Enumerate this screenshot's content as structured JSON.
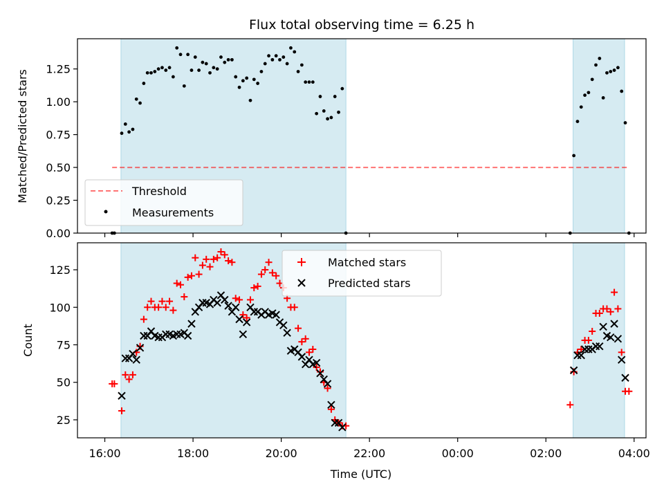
{
  "colors": {
    "shade": "#add8e6",
    "threshold": "#ff0000",
    "measurement": "#000000",
    "matched": "#ff0000",
    "predicted": "#000000"
  },
  "chart_data": [
    {
      "type": "scatter",
      "title": "Flux total observing time = 6.25 h",
      "ylabel": "Matched/Predicted stars",
      "xlabel": "",
      "xlim": [
        "16:00",
        "04:00"
      ],
      "ylim": [
        0,
        1.48
      ],
      "yticks": [
        "0.00",
        "0.25",
        "0.50",
        "0.75",
        "1.00",
        "1.25"
      ],
      "legend_position": "lower-left",
      "shaded_intervals": [
        [
          "16:22",
          "21:28"
        ],
        [
          "02:37",
          "03:47"
        ]
      ],
      "threshold": {
        "name": "Threshold",
        "value": 0.5,
        "x_range": [
          "16:10",
          "03:53"
        ]
      },
      "measurements": {
        "name": "Measurements",
        "x": [
          "16:10",
          "16:13",
          "16:23",
          "16:28",
          "16:33",
          "16:38",
          "16:43",
          "16:48",
          "16:53",
          "16:58",
          "17:03",
          "17:08",
          "17:13",
          "17:18",
          "17:23",
          "17:28",
          "17:33",
          "17:38",
          "17:43",
          "17:48",
          "17:53",
          "17:58",
          "18:03",
          "18:08",
          "18:13",
          "18:18",
          "18:23",
          "18:28",
          "18:33",
          "18:38",
          "18:43",
          "18:48",
          "18:53",
          "18:58",
          "19:03",
          "19:08",
          "19:13",
          "19:18",
          "19:23",
          "19:28",
          "19:33",
          "19:38",
          "19:43",
          "19:48",
          "19:53",
          "19:58",
          "20:03",
          "20:08",
          "20:13",
          "20:18",
          "20:23",
          "20:28",
          "20:33",
          "20:38",
          "20:43",
          "20:48",
          "20:53",
          "20:58",
          "21:03",
          "21:08",
          "21:13",
          "21:18",
          "21:23",
          "21:28",
          "02:33",
          "02:38",
          "02:43",
          "02:48",
          "02:53",
          "02:58",
          "03:03",
          "03:08",
          "03:13",
          "03:18",
          "03:23",
          "03:28",
          "03:33",
          "03:38",
          "03:43",
          "03:48",
          "03:53"
        ],
        "y": [
          0.0,
          0.0,
          0.76,
          0.83,
          0.77,
          0.79,
          1.02,
          0.99,
          1.14,
          1.22,
          1.22,
          1.23,
          1.25,
          1.26,
          1.24,
          1.26,
          1.19,
          1.41,
          1.36,
          1.12,
          1.36,
          1.24,
          1.34,
          1.24,
          1.3,
          1.29,
          1.22,
          1.26,
          1.25,
          1.34,
          1.3,
          1.32,
          1.32,
          1.19,
          1.11,
          1.16,
          1.18,
          1.01,
          1.17,
          1.14,
          1.23,
          1.29,
          1.35,
          1.32,
          1.35,
          1.32,
          1.34,
          1.29,
          1.41,
          1.38,
          1.23,
          1.28,
          1.15,
          1.15,
          1.15,
          0.91,
          1.04,
          0.93,
          0.87,
          0.88,
          1.04,
          0.92,
          1.1,
          0.0,
          0.0,
          0.59,
          0.85,
          0.96,
          1.05,
          1.07,
          1.17,
          1.28,
          1.33,
          1.03,
          1.22,
          1.23,
          1.24,
          1.26,
          1.08,
          0.84,
          0.0
        ]
      }
    },
    {
      "type": "scatter",
      "title": "",
      "ylabel": "Count",
      "xlabel": "Time (UTC)",
      "xlim": [
        "16:00",
        "04:00"
      ],
      "xticks": [
        "16:00",
        "18:00",
        "20:00",
        "22:00",
        "00:00",
        "02:00",
        "04:00"
      ],
      "ylim": [
        13,
        143
      ],
      "yticks": [
        "25",
        "50",
        "75",
        "100",
        "125"
      ],
      "legend_position": "top-center",
      "series": [
        {
          "name": "Matched stars",
          "marker": "plus",
          "x": [
            "16:10",
            "16:13",
            "16:23",
            "16:28",
            "16:33",
            "16:38",
            "16:43",
            "16:48",
            "16:53",
            "16:58",
            "17:03",
            "17:08",
            "17:13",
            "17:18",
            "17:23",
            "17:28",
            "17:33",
            "17:38",
            "17:43",
            "17:48",
            "17:53",
            "17:58",
            "18:03",
            "18:08",
            "18:13",
            "18:18",
            "18:23",
            "18:28",
            "18:33",
            "18:38",
            "18:43",
            "18:48",
            "18:53",
            "18:58",
            "19:03",
            "19:08",
            "19:13",
            "19:18",
            "19:23",
            "19:28",
            "19:33",
            "19:38",
            "19:43",
            "19:48",
            "19:53",
            "19:58",
            "20:03",
            "20:08",
            "20:13",
            "20:18",
            "20:23",
            "20:28",
            "20:33",
            "20:38",
            "20:43",
            "20:48",
            "20:53",
            "20:58",
            "21:03",
            "21:08",
            "21:13",
            "21:18",
            "21:23",
            "21:28",
            "02:33",
            "02:38",
            "02:43",
            "02:48",
            "02:53",
            "02:58",
            "03:03",
            "03:08",
            "03:13",
            "03:18",
            "03:23",
            "03:28",
            "03:33",
            "03:38",
            "03:43",
            "03:48",
            "03:53"
          ],
          "y": [
            49,
            49,
            31,
            55,
            52,
            55,
            70,
            74,
            92,
            100,
            104,
            100,
            100,
            104,
            100,
            104,
            98,
            116,
            115,
            107,
            120,
            121,
            133,
            122,
            128,
            132,
            127,
            132,
            133,
            137,
            135,
            131,
            130,
            106,
            105,
            95,
            93,
            105,
            113,
            114,
            122,
            125,
            130,
            123,
            121,
            116,
            113,
            106,
            100,
            100,
            86,
            77,
            79,
            70,
            72,
            60,
            57,
            50,
            46,
            32,
            25,
            23,
            21,
            21,
            35,
            57,
            70,
            72,
            78,
            78,
            84,
            96,
            96,
            99,
            99,
            97,
            110,
            99,
            70,
            44,
            44
          ]
        },
        {
          "name": "Predicted stars",
          "marker": "x",
          "x": [
            "16:23",
            "16:28",
            "16:33",
            "16:38",
            "16:43",
            "16:48",
            "16:53",
            "16:58",
            "17:03",
            "17:08",
            "17:13",
            "17:18",
            "17:23",
            "17:28",
            "17:33",
            "17:38",
            "17:43",
            "17:48",
            "17:53",
            "17:58",
            "18:03",
            "18:08",
            "18:13",
            "18:18",
            "18:23",
            "18:28",
            "18:33",
            "18:38",
            "18:43",
            "18:48",
            "18:53",
            "18:58",
            "19:03",
            "19:08",
            "19:13",
            "19:18",
            "19:23",
            "19:28",
            "19:33",
            "19:38",
            "19:43",
            "19:48",
            "19:53",
            "19:58",
            "20:03",
            "20:08",
            "20:13",
            "20:18",
            "20:23",
            "20:28",
            "20:33",
            "20:38",
            "20:43",
            "20:48",
            "20:53",
            "20:58",
            "21:03",
            "21:08",
            "21:13",
            "21:18",
            "21:23",
            "02:38",
            "02:43",
            "02:48",
            "02:53",
            "02:58",
            "03:03",
            "03:08",
            "03:13",
            "03:18",
            "03:23",
            "03:28",
            "03:33",
            "03:38",
            "03:43",
            "03:48"
          ],
          "y": [
            41,
            66,
            66,
            69,
            65,
            73,
            81,
            81,
            84,
            81,
            80,
            80,
            82,
            82,
            81,
            82,
            82,
            83,
            81,
            89,
            97,
            100,
            103,
            103,
            102,
            105,
            103,
            108,
            105,
            101,
            97,
            100,
            92,
            82,
            90,
            100,
            97,
            97,
            95,
            97,
            95,
            96,
            95,
            90,
            88,
            83,
            71,
            72,
            70,
            67,
            62,
            65,
            62,
            63,
            56,
            52,
            49,
            35,
            23,
            23,
            20,
            58,
            68,
            68,
            72,
            72,
            72,
            74,
            74,
            87,
            81,
            80,
            89,
            79,
            65,
            53
          ]
        }
      ]
    }
  ]
}
